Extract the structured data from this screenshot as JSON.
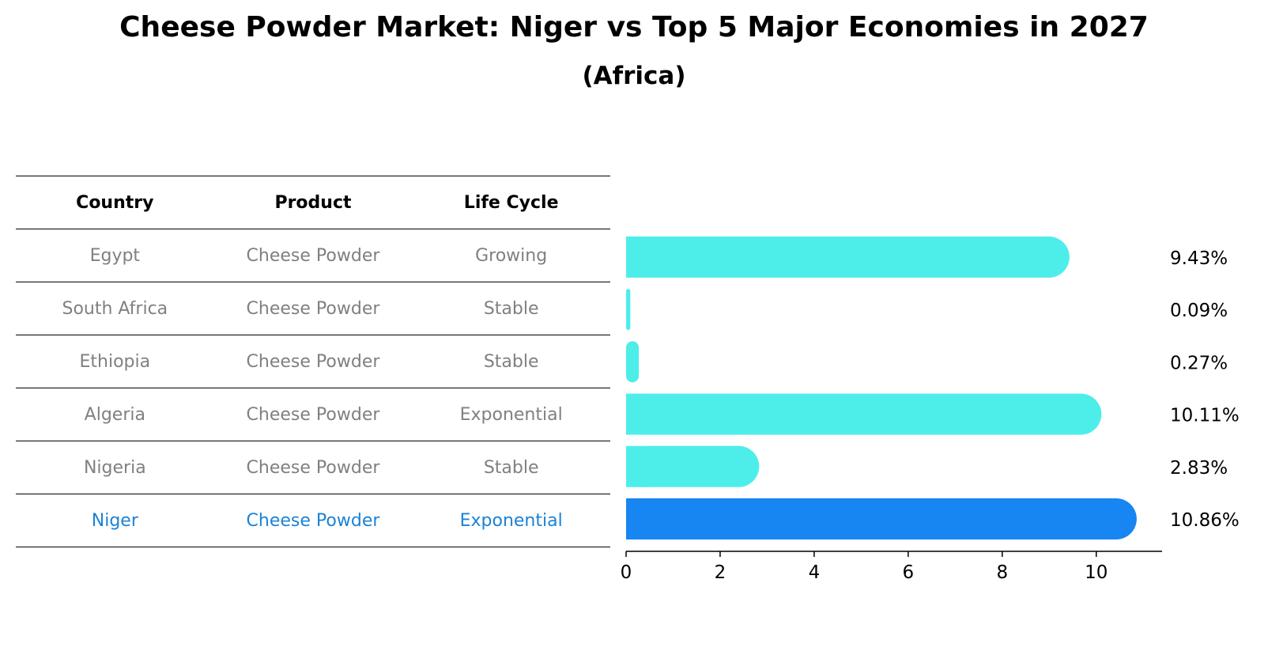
{
  "title": "Cheese Powder Market: Niger vs Top 5 Major Economies in 2027",
  "subtitle": "(Africa)",
  "table": {
    "headers": [
      "Country",
      "Product",
      "Life Cycle"
    ],
    "rows": [
      {
        "country": "Egypt",
        "product": "Cheese Powder",
        "life_cycle": "Growing"
      },
      {
        "country": "South Africa",
        "product": "Cheese Powder",
        "life_cycle": "Stable"
      },
      {
        "country": "Ethiopia",
        "product": "Cheese Powder",
        "life_cycle": "Stable"
      },
      {
        "country": "Algeria",
        "product": "Cheese Powder",
        "life_cycle": "Exponential"
      },
      {
        "country": "Nigeria",
        "product": "Cheese Powder",
        "life_cycle": "Stable"
      },
      {
        "country": "Niger",
        "product": "Cheese Powder",
        "life_cycle": "Exponential"
      }
    ]
  },
  "chart_data": {
    "type": "bar",
    "orientation": "horizontal",
    "title": "Cheese Powder Market: Niger vs Top 5 Major Economies in 2027",
    "subtitle": "(Africa)",
    "categories": [
      "Egypt",
      "South Africa",
      "Ethiopia",
      "Algeria",
      "Nigeria",
      "Niger"
    ],
    "values": [
      9.43,
      0.09,
      0.27,
      10.11,
      2.83,
      10.86
    ],
    "labels": [
      "9.43%",
      "0.09%",
      "0.27%",
      "10.11%",
      "2.83%",
      "10.86%"
    ],
    "highlight": "Niger",
    "xlim": [
      0,
      11.4
    ],
    "xticks": [
      0,
      2,
      4,
      6,
      8,
      10
    ],
    "xlabel": "",
    "ylabel": "",
    "colors": {
      "default": "#4deeea",
      "highlight": "#1785f2"
    }
  }
}
